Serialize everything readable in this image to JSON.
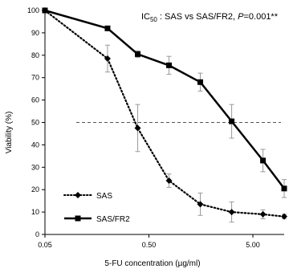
{
  "chart_data": {
    "type": "line",
    "xlabel": "5-FU concentration (µg/ml)",
    "ylabel": "Viability (%)",
    "x_scale": "log",
    "xlim": [
      0.05,
      10
    ],
    "ylim": [
      0,
      100
    ],
    "x_ticks": [
      0.05,
      0.5,
      5
    ],
    "x_tick_labels": [
      "0.05",
      "0.50",
      "5.00"
    ],
    "y_ticks": [
      0,
      10,
      20,
      30,
      40,
      50,
      60,
      70,
      80,
      90,
      100
    ],
    "y_tick_labels": [
      "0",
      "10",
      "20",
      "30",
      "40",
      "50",
      "60",
      "70",
      "80",
      "90",
      "100"
    ],
    "grid": false,
    "legend_position": "bottom-left",
    "reference_line": {
      "y": 50,
      "style": "dashed"
    },
    "annotation": {
      "prefix": "IC",
      "subscript": "50",
      "middle": " : SAS vs SAS/FR2, ",
      "p_label": "P",
      "p_value": "=0.001**"
    },
    "series": [
      {
        "name": "SAS",
        "marker": "diamond",
        "line_style": "dotted",
        "color": "#000000",
        "x": [
          0.05,
          0.2,
          0.39,
          0.78,
          1.56,
          3.125,
          6.25,
          10
        ],
        "y": [
          100,
          78.5,
          47.5,
          24,
          13.5,
          10,
          9,
          8
        ],
        "err": [
          0,
          6,
          10.5,
          3,
          5,
          4.5,
          2,
          1
        ]
      },
      {
        "name": "SAS/FR2",
        "marker": "square",
        "line_style": "solid",
        "color": "#000000",
        "x": [
          0.05,
          0.2,
          0.39,
          0.78,
          1.56,
          3.125,
          6.25,
          10
        ],
        "y": [
          100,
          92,
          80.5,
          75.5,
          68,
          50.5,
          33,
          20.5
        ],
        "err": [
          0,
          1,
          1.5,
          4,
          4,
          7.5,
          5,
          4
        ]
      }
    ]
  }
}
